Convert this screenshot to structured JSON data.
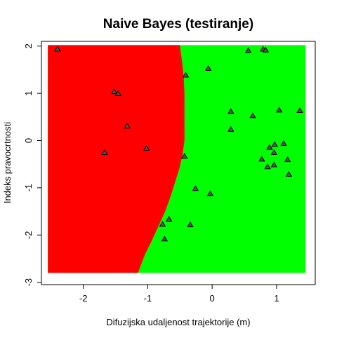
{
  "chart_data": {
    "type": "scatter",
    "title": "Naive Bayes (testiranje)",
    "xlabel": "Difuzijska udaljenost trajektorije (m)",
    "ylabel": "Indeks pravocrtnosti",
    "xlim": [
      -2.65,
      1.6
    ],
    "ylim": [
      -3.05,
      2.1
    ],
    "x_ticks": [
      -2,
      -1,
      0,
      1
    ],
    "y_ticks": [
      -3,
      -2,
      -1,
      0,
      1,
      2
    ],
    "grid": false,
    "legend": "none",
    "regions": {
      "x_range": [
        -2.55,
        1.45
      ],
      "y_range": [
        -2.8,
        2.02
      ],
      "left_class_color": "#ff0000",
      "right_class_color": "#00ff00",
      "boundary": [
        {
          "y": 2.02,
          "x": -0.5
        },
        {
          "y": 1.9,
          "x": -0.49
        },
        {
          "y": 1.6,
          "x": -0.46
        },
        {
          "y": 1.3,
          "x": -0.44
        },
        {
          "y": 1.0,
          "x": -0.43
        },
        {
          "y": 0.5,
          "x": -0.43
        },
        {
          "y": 0.0,
          "x": -0.43
        },
        {
          "y": -0.3,
          "x": -0.46
        },
        {
          "y": -0.6,
          "x": -0.51
        },
        {
          "y": -0.9,
          "x": -0.58
        },
        {
          "y": -1.2,
          "x": -0.65
        },
        {
          "y": -1.5,
          "x": -0.73
        },
        {
          "y": -1.8,
          "x": -0.83
        },
        {
          "y": -2.1,
          "x": -0.93
        },
        {
          "y": -2.4,
          "x": -1.04
        },
        {
          "y": -2.65,
          "x": -1.11
        },
        {
          "y": -2.8,
          "x": -1.15
        }
      ]
    },
    "series": [
      {
        "marker": "triangle",
        "color": "#555555",
        "points": [
          {
            "x": -2.4,
            "y": 1.93
          },
          {
            "x": -1.52,
            "y": 1.03
          },
          {
            "x": -1.46,
            "y": 0.99
          },
          {
            "x": -1.32,
            "y": 0.3
          },
          {
            "x": -1.67,
            "y": -0.26
          },
          {
            "x": -1.02,
            "y": -0.17
          },
          {
            "x": -0.41,
            "y": 1.38
          },
          {
            "x": -0.43,
            "y": -0.34
          },
          {
            "x": -0.06,
            "y": 1.52
          },
          {
            "x": 0.56,
            "y": 1.9
          },
          {
            "x": 0.79,
            "y": 1.93
          },
          {
            "x": 0.83,
            "y": 1.91
          },
          {
            "x": 0.29,
            "y": 0.61
          },
          {
            "x": 0.29,
            "y": 0.23
          },
          {
            "x": 0.63,
            "y": 0.52
          },
          {
            "x": 1.04,
            "y": 0.64
          },
          {
            "x": 1.36,
            "y": 0.63
          },
          {
            "x": 1.11,
            "y": -0.07
          },
          {
            "x": 0.97,
            "y": -0.09
          },
          {
            "x": 0.89,
            "y": -0.15
          },
          {
            "x": 0.96,
            "y": -0.26
          },
          {
            "x": 0.77,
            "y": -0.4
          },
          {
            "x": 1.17,
            "y": -0.41
          },
          {
            "x": 0.96,
            "y": -0.52
          },
          {
            "x": 0.86,
            "y": -0.56
          },
          {
            "x": 1.19,
            "y": -0.72
          },
          {
            "x": -0.26,
            "y": -1.02
          },
          {
            "x": -0.03,
            "y": -1.13
          },
          {
            "x": -0.67,
            "y": -1.67
          },
          {
            "x": -0.77,
            "y": -1.78
          },
          {
            "x": -0.34,
            "y": -1.79
          },
          {
            "x": -0.74,
            "y": -2.09
          }
        ]
      }
    ]
  }
}
